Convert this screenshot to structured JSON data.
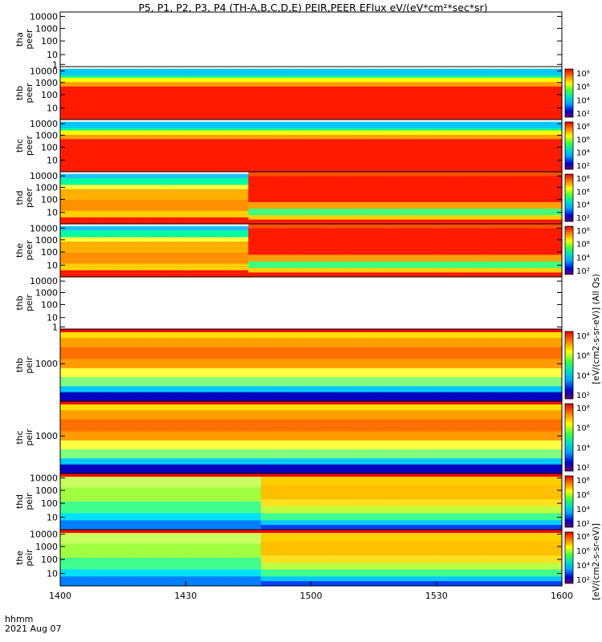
{
  "title": "P5, P1, P2, P3, P4 (TH-A,B,C,D,E) PEIR,PEER EFlux eV/(eV*cm²*sec*sr)",
  "time_axis": {
    "label_hhmm": "hhmm",
    "label_date": "2021 Aug 07",
    "ticks": [
      "1400",
      "1430",
      "1500",
      "1530",
      "1600"
    ],
    "range_minutes": [
      0,
      120
    ]
  },
  "colorbar_tick_labels": [
    "10⁸",
    "10⁶",
    "10⁴",
    "10²"
  ],
  "colorbar_label_upper": "[eV/(cm2-s-sr-eV)] (All Qs)",
  "colorbar_label_lower": "[eV/(cm2-s-sr-eV)]",
  "chart_data": [
    {
      "type": "heatmap",
      "ylabel": [
        "tha",
        "peer"
      ],
      "yscale": "log",
      "ylim": [
        1,
        10000
      ],
      "yticks": [
        "10000",
        "1000",
        "100",
        "10",
        "1"
      ],
      "has_data": false,
      "colorbar": false
    },
    {
      "type": "heatmap",
      "ylabel": [
        "thb",
        "peer"
      ],
      "yscale": "log",
      "ylim": [
        5,
        20000
      ],
      "yticks": [
        "10000",
        "1000",
        "100",
        "10"
      ],
      "has_data": true,
      "colorbar": true,
      "pattern": "stable",
      "change_minute": null
    },
    {
      "type": "heatmap",
      "ylabel": [
        "thc",
        "peer"
      ],
      "yscale": "log",
      "ylim": [
        5,
        20000
      ],
      "yticks": [
        "10000",
        "1000",
        "100",
        "10"
      ],
      "has_data": true,
      "colorbar": true,
      "pattern": "stable",
      "change_minute": null
    },
    {
      "type": "heatmap",
      "ylabel": [
        "thd",
        "peer"
      ],
      "yscale": "log",
      "ylim": [
        5,
        20000
      ],
      "yticks": [
        "10000",
        "1000",
        "100",
        "10"
      ],
      "has_data": true,
      "colorbar": true,
      "pattern": "transition",
      "change_minute": 44
    },
    {
      "type": "heatmap",
      "ylabel": [
        "the",
        "peer"
      ],
      "yscale": "log",
      "ylim": [
        5,
        20000
      ],
      "yticks": [
        "10000",
        "1000",
        "100",
        "10"
      ],
      "has_data": true,
      "colorbar": true,
      "pattern": "transition",
      "change_minute": 45
    },
    {
      "type": "heatmap",
      "ylabel": [
        "thb",
        "peir"
      ],
      "yscale": "log",
      "ylim": [
        1,
        10000
      ],
      "yticks": [
        "10000",
        "1000",
        "100",
        "10",
        "1"
      ],
      "has_data": false,
      "colorbar": false
    },
    {
      "type": "heatmap",
      "ylabel": [
        "thb",
        "peir"
      ],
      "yscale": "log",
      "ylim": [
        200,
        8000
      ],
      "yticks": [
        "1000"
      ],
      "has_data": true,
      "colorbar": true,
      "pattern": "ion_band",
      "change_minute": 5
    },
    {
      "type": "heatmap",
      "ylabel": [
        "thc",
        "peir"
      ],
      "yscale": "log",
      "ylim": [
        200,
        8000
      ],
      "yticks": [
        "1000"
      ],
      "has_data": true,
      "colorbar": true,
      "pattern": "ion_band",
      "change_minute": 5
    },
    {
      "type": "heatmap",
      "ylabel": [
        "thd",
        "peir"
      ],
      "yscale": "log",
      "ylim": [
        5,
        20000
      ],
      "yticks": [
        "10000",
        "1000",
        "100",
        "10"
      ],
      "has_data": true,
      "colorbar": true,
      "pattern": "ion_wide",
      "change_minute": 47
    },
    {
      "type": "heatmap",
      "ylabel": [
        "the",
        "peir"
      ],
      "yscale": "log",
      "ylim": [
        5,
        20000
      ],
      "yticks": [
        "10000",
        "1000",
        "100",
        "10"
      ],
      "has_data": true,
      "colorbar": true,
      "pattern": "ion_wide",
      "change_minute": 46
    }
  ]
}
